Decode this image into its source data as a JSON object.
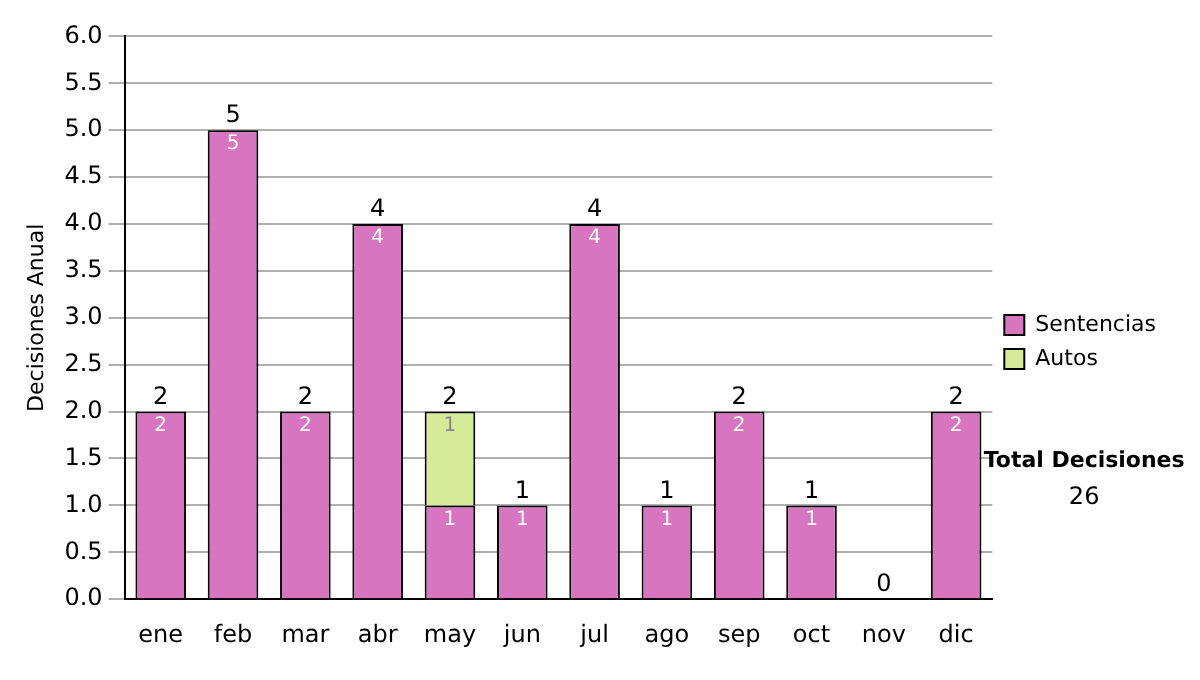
{
  "chart_data": {
    "type": "bar",
    "stacked": true,
    "ylabel": "Decisiones Anual",
    "categories": [
      "ene",
      "feb",
      "mar",
      "abr",
      "may",
      "jun",
      "jul",
      "ago",
      "sep",
      "oct",
      "nov",
      "dic"
    ],
    "series": [
      {
        "name": "Sentencias",
        "color": "#d875c0",
        "values": [
          2,
          5,
          2,
          4,
          1,
          1,
          4,
          1,
          2,
          1,
          0,
          2
        ],
        "value_labels": [
          "2",
          "5",
          "2",
          "4",
          "1",
          "1",
          "4",
          "1",
          "2",
          "1",
          null,
          "2"
        ]
      },
      {
        "name": "Autos",
        "color": "#d6eb97",
        "values": [
          null,
          null,
          null,
          null,
          1,
          null,
          null,
          null,
          null,
          null,
          null,
          null
        ],
        "value_labels": [
          null,
          null,
          null,
          null,
          "1",
          null,
          null,
          null,
          null,
          null,
          null,
          null
        ]
      }
    ],
    "totals": [
      "2",
      "5",
      "2",
      "4",
      "2",
      "1",
      "4",
      "1",
      "2",
      "1",
      "0",
      "2"
    ],
    "ylim": [
      0,
      6
    ],
    "yticks": [
      {
        "value": 0,
        "label": "0.0"
      },
      {
        "value": 0.5,
        "label": "0.5"
      },
      {
        "value": 1,
        "label": "1.0"
      },
      {
        "value": 1.5,
        "label": "1.5"
      },
      {
        "value": 2,
        "label": "2.0"
      },
      {
        "value": 2.5,
        "label": "2.5"
      },
      {
        "value": 3,
        "label": "3.0"
      },
      {
        "value": 3.5,
        "label": "3.5"
      },
      {
        "value": 4,
        "label": "4.0"
      },
      {
        "value": 4.5,
        "label": "4.5"
      },
      {
        "value": 5,
        "label": "5.0"
      },
      {
        "value": 5.5,
        "label": "5.5"
      },
      {
        "value": 6,
        "label": "6.0"
      }
    ],
    "grid": "y",
    "legend": "right",
    "annotations": [
      "Total Decisiones",
      "26"
    ]
  }
}
